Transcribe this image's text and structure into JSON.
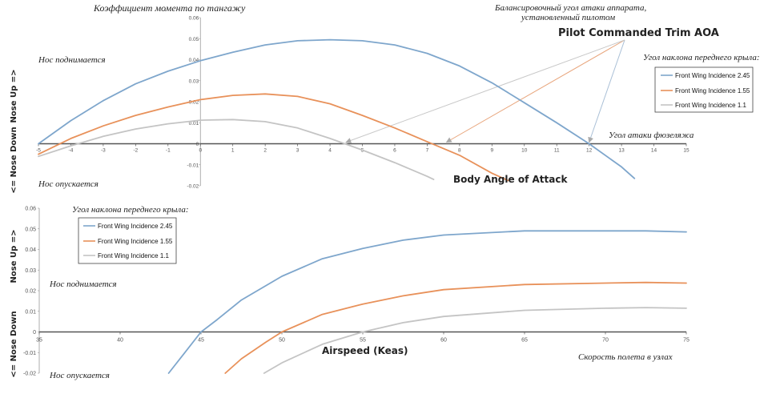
{
  "chart_data": [
    {
      "type": "line",
      "title": "Коэффициент момента по тангажу",
      "xlabel": "Body Angle of Attack",
      "xlabel_ru": "Угол атаки фюзеляжа",
      "ylabel_top": "Nose Up =>",
      "ylabel_bottom": "<= Nose Down",
      "label_up_ru": "Нос поднимается",
      "label_down_ru": "Нос опускается",
      "xlim": [
        -5,
        15
      ],
      "ylim": [
        -0.02,
        0.06
      ],
      "x_ticks": [
        -5,
        -4,
        -3,
        -2,
        -1,
        0,
        1,
        2,
        3,
        4,
        5,
        6,
        7,
        8,
        9,
        10,
        11,
        12,
        13,
        14,
        15
      ],
      "y_ticks": [
        "-0.02",
        "-0.01",
        "0",
        "0.01",
        "0.02",
        "0.03",
        "0.04",
        "0.05",
        "0.06"
      ],
      "legend_title_ru": "Угол наклона переднего крыла:",
      "legend_position": "right",
      "annotation_en": "Pilot Commanded Trim AOA",
      "annotation_ru_line1": "Балансировочный угол атаки аппарата,",
      "annotation_ru_line2": "установленный пилотом",
      "trim_points_x": [
        12,
        7.6,
        4.5
      ],
      "series": [
        {
          "name": "Front Wing Incidence 2.45",
          "color": "#7ea6cc",
          "x": [
            -5,
            -4,
            -3,
            -2,
            -1,
            0,
            1,
            2,
            3,
            4,
            5,
            6,
            7,
            8,
            9,
            10,
            11,
            12,
            13,
            13.4
          ],
          "y": [
            0.0,
            0.011,
            0.0205,
            0.0285,
            0.0345,
            0.0395,
            0.0435,
            0.047,
            0.049,
            0.0495,
            0.049,
            0.047,
            0.043,
            0.037,
            0.029,
            0.0195,
            0.01,
            0.0,
            -0.011,
            -0.0165
          ]
        },
        {
          "name": "Front Wing Incidence 1.55",
          "color": "#e8915a",
          "x": [
            -5,
            -4,
            -3,
            -2,
            -1,
            0,
            1,
            2,
            3,
            4,
            5,
            6,
            7,
            8,
            9,
            9.5
          ],
          "y": [
            -0.005,
            0.0025,
            0.0085,
            0.0135,
            0.0175,
            0.021,
            0.023,
            0.0237,
            0.0225,
            0.019,
            0.0135,
            0.0075,
            0.001,
            -0.0055,
            -0.014,
            -0.0175
          ]
        },
        {
          "name": "Front Wing Incidence 1.1",
          "color": "#c4c4c4",
          "x": [
            -5,
            -4,
            -3,
            -2,
            -1,
            0,
            1,
            2,
            3,
            4,
            5,
            6,
            7,
            7.2
          ],
          "y": [
            -0.006,
            -0.001,
            0.0035,
            0.007,
            0.0095,
            0.0112,
            0.0115,
            0.0105,
            0.0075,
            0.0025,
            -0.003,
            -0.009,
            -0.0155,
            -0.017
          ]
        }
      ]
    },
    {
      "type": "line",
      "xlabel": "Airspeed (Keas)",
      "xlabel_ru": "Скорость полета в узлах",
      "ylabel_top": "Nose Up =>",
      "ylabel_bottom": "<= Nose Down",
      "label_up_ru": "Нос поднимается",
      "label_down_ru": "Нос опускается",
      "xlim": [
        35,
        75
      ],
      "ylim": [
        -0.02,
        0.06
      ],
      "x_ticks": [
        35,
        40,
        45,
        50,
        55,
        60,
        65,
        70,
        75
      ],
      "y_ticks": [
        "-0.02",
        "-0.01",
        "0",
        "0.01",
        "0.02",
        "0.03",
        "0.04",
        "0.05",
        "0.06"
      ],
      "legend_title_ru": "Угол наклона переднего крыла:",
      "legend_position": "top-left",
      "series": [
        {
          "name": "Front Wing Incidence 2.45",
          "color": "#7ea6cc",
          "x": [
            43,
            44,
            45,
            46,
            47.5,
            50,
            52.5,
            55,
            57.5,
            60,
            65,
            70,
            72.5,
            75
          ],
          "y": [
            -0.02,
            -0.01,
            0.0,
            0.006,
            0.0155,
            0.027,
            0.0355,
            0.0405,
            0.0445,
            0.047,
            0.049,
            0.049,
            0.049,
            0.0485
          ]
        },
        {
          "name": "Front Wing Incidence 1.55",
          "color": "#e8915a",
          "x": [
            46.5,
            47.5,
            49,
            50,
            52.5,
            55,
            57.5,
            60,
            65,
            70,
            72.5,
            75
          ],
          "y": [
            -0.02,
            -0.013,
            -0.005,
            0.0,
            0.0085,
            0.0135,
            0.0175,
            0.0205,
            0.023,
            0.0237,
            0.024,
            0.0237
          ]
        },
        {
          "name": "Front Wing Incidence 1.1",
          "color": "#c4c4c4",
          "x": [
            48.9,
            50,
            52.5,
            55,
            57.5,
            60,
            65,
            70,
            72.5,
            75
          ],
          "y": [
            -0.02,
            -0.015,
            -0.006,
            0.0,
            0.0045,
            0.0075,
            0.0105,
            0.0115,
            0.0118,
            0.0115
          ]
        }
      ]
    }
  ]
}
